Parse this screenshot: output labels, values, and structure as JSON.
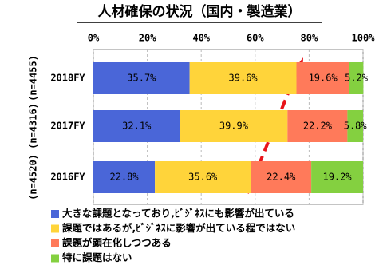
{
  "chart_data": {
    "type": "stacked-bar-horizontal",
    "title": "人材確保の状況（国内・製造業）",
    "categories": [
      "2018FY",
      "2017FY",
      "2016FY"
    ],
    "sample_sizes": [
      "(n=4455)",
      "(n=4316)",
      "(n=4520)"
    ],
    "series": [
      {
        "name": "大きな課題となっており,ﾋﾞｼﾞﾈｽにも影響が出ている",
        "color": "#4a66d8",
        "values": [
          35.7,
          32.1,
          22.8
        ],
        "value_labels": [
          "35.7%",
          "32.1%",
          "22.8%"
        ]
      },
      {
        "name": "課題ではあるが,ﾋﾞｼﾞﾈｽに影響が出ている程ではない",
        "color": "#ffd43a",
        "values": [
          39.6,
          39.9,
          35.6
        ],
        "value_labels": [
          "39.6%",
          "39.9%",
          "35.6%"
        ]
      },
      {
        "name": "課題が顕在化しつつある",
        "color": "#ff7a5a",
        "values": [
          19.6,
          22.2,
          22.4
        ],
        "value_labels": [
          "19.6%",
          "22.2%",
          "22.4%"
        ]
      },
      {
        "name": "特に課題はない",
        "color": "#84d040",
        "values": [
          5.2,
          5.8,
          19.2
        ],
        "value_labels": [
          "5.2%",
          "5.8%",
          "19.2%"
        ]
      }
    ],
    "xlim": [
      0,
      100
    ],
    "xticks": [
      {
        "value": 0,
        "label": "0%"
      },
      {
        "value": 20,
        "label": "20%"
      },
      {
        "value": 40,
        "label": "40%"
      },
      {
        "value": 60,
        "label": "60%"
      },
      {
        "value": 80,
        "label": "80%"
      },
      {
        "value": 100,
        "label": "100%"
      }
    ],
    "grid": true
  }
}
